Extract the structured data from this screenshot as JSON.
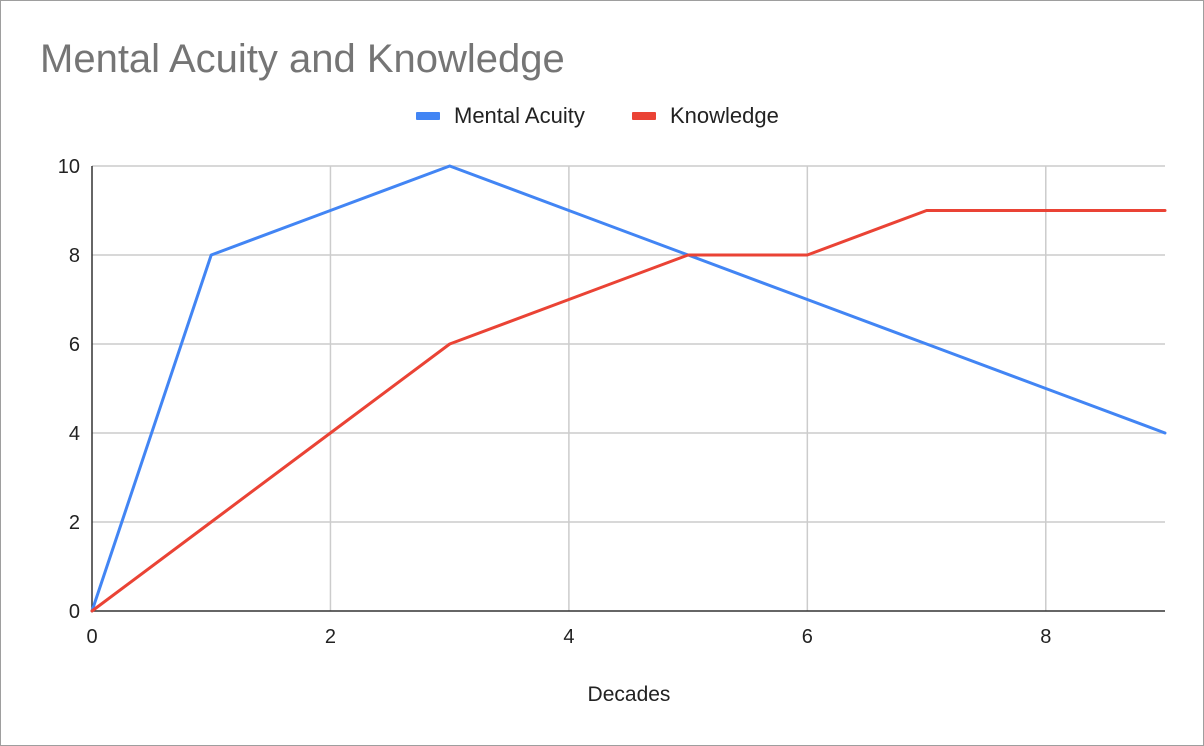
{
  "chart_data": {
    "type": "line",
    "title": "Mental Acuity and Knowledge",
    "xlabel": "Decades",
    "ylabel": "",
    "x": [
      0,
      1,
      2,
      3,
      4,
      5,
      6,
      7,
      8,
      9
    ],
    "series": [
      {
        "name": "Mental Acuity",
        "color": "#4285f4",
        "values": [
          0,
          8,
          9,
          10,
          9,
          8,
          7,
          6,
          5,
          4
        ]
      },
      {
        "name": "Knowledge",
        "color": "#ea4335",
        "values": [
          0,
          2,
          4,
          6,
          7,
          8,
          8,
          9,
          9,
          9
        ]
      }
    ],
    "xlim": [
      0,
      9
    ],
    "ylim": [
      0,
      10
    ],
    "x_ticks": [
      0,
      2,
      4,
      6,
      8
    ],
    "y_ticks": [
      0,
      2,
      4,
      6,
      8,
      10
    ],
    "x_tick_labels": [
      "0",
      "2",
      "4",
      "6",
      "8"
    ],
    "y_tick_labels": [
      "0",
      "2",
      "4",
      "6",
      "8",
      "10"
    ],
    "grid": true,
    "legend_position": "top"
  }
}
